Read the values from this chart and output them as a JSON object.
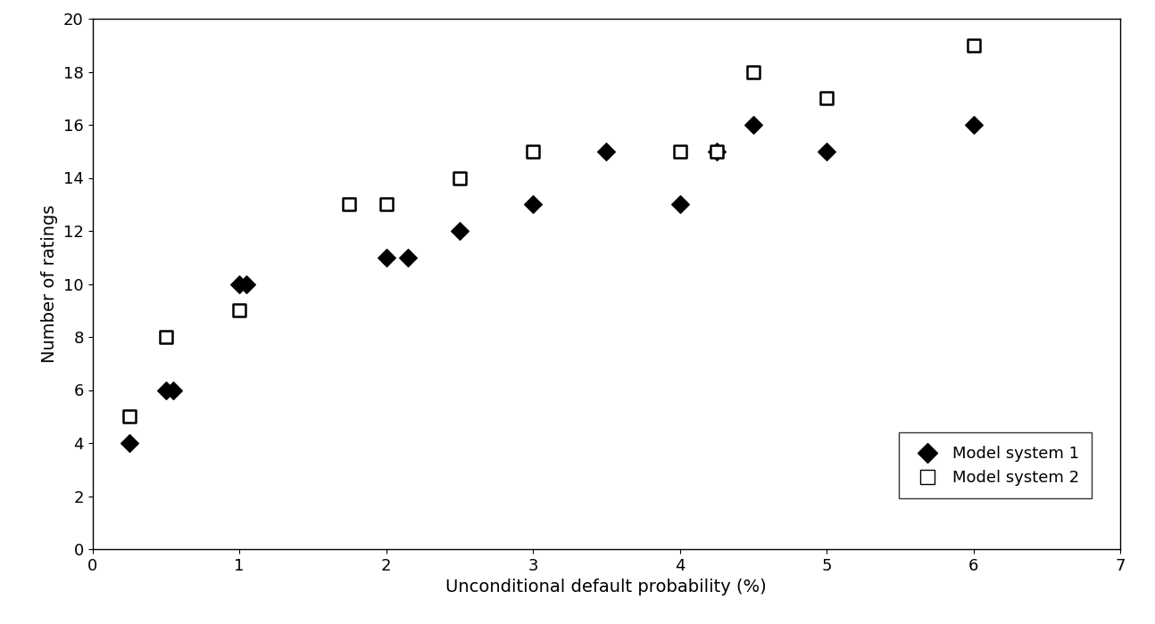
{
  "model1_x": [
    0.25,
    0.5,
    0.55,
    1.0,
    1.05,
    2.0,
    2.15,
    2.5,
    3.0,
    3.5,
    4.0,
    4.25,
    4.5,
    5.0,
    6.0
  ],
  "model1_y": [
    4,
    6,
    6,
    10,
    10,
    11,
    11,
    12,
    13,
    15,
    13,
    15,
    16,
    15,
    16
  ],
  "model2_x": [
    0.25,
    0.5,
    1.0,
    1.75,
    2.0,
    2.5,
    3.0,
    4.0,
    4.25,
    4.5,
    5.0,
    6.0
  ],
  "model2_y": [
    5,
    8,
    9,
    13,
    13,
    14,
    15,
    15,
    15,
    18,
    17,
    19
  ],
  "xlabel": "Unconditional default probability (%)",
  "ylabel": "Number of ratings",
  "xlim": [
    0,
    7
  ],
  "ylim": [
    0,
    20
  ],
  "xticks": [
    0,
    1,
    2,
    3,
    4,
    5,
    6,
    7
  ],
  "yticks": [
    0,
    2,
    4,
    6,
    8,
    10,
    12,
    14,
    16,
    18,
    20
  ],
  "legend_labels": [
    "Model system 1",
    "Model system 2"
  ],
  "marker1": "D",
  "marker2": "s",
  "color1": "#000000",
  "color2": "#000000",
  "markersize1": 10,
  "markersize2": 10
}
